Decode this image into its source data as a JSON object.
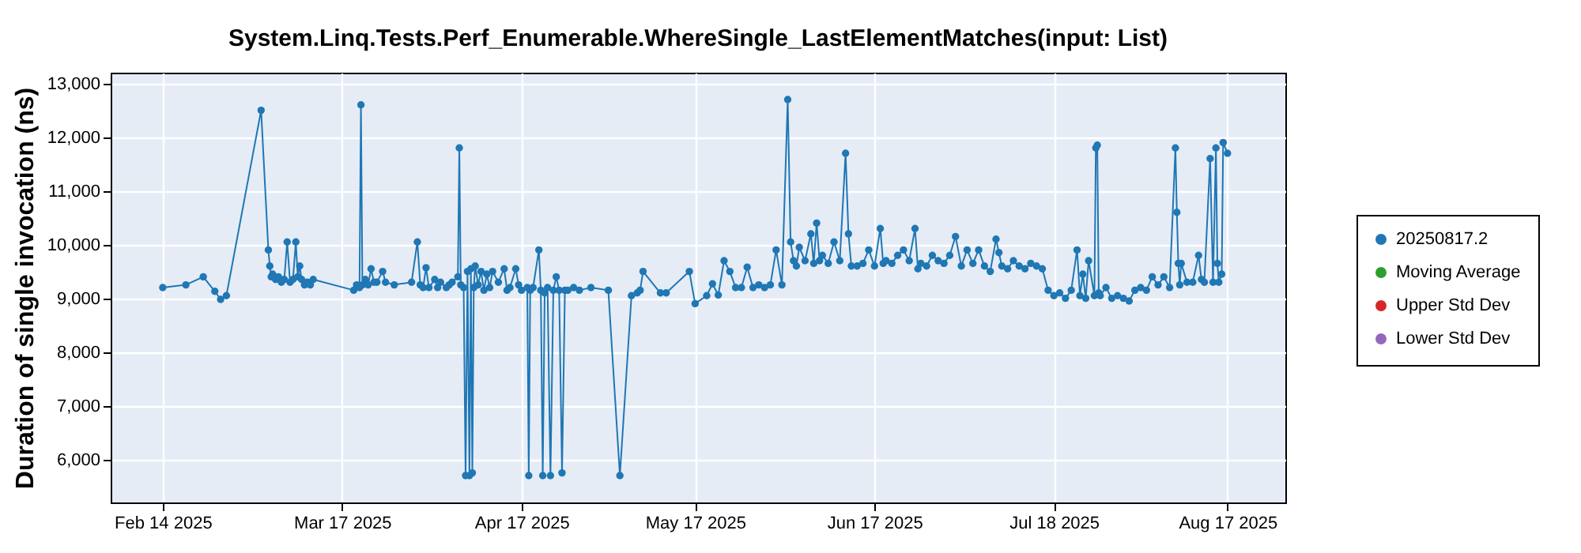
{
  "chart_data": {
    "type": "line",
    "title": "System.Linq.Tests.Perf_Enumerable.WhereSingle_LastElementMatches(input: List)",
    "ylabel": "Duration of single invocation (ns)",
    "xlim": [
      "2025-02-05",
      "2025-08-27"
    ],
    "xticks": [
      {
        "value": "2025-02-14",
        "label": "Feb 14 2025"
      },
      {
        "value": "2025-03-17",
        "label": "Mar 17 2025"
      },
      {
        "value": "2025-04-17",
        "label": "Apr 17 2025"
      },
      {
        "value": "2025-05-17",
        "label": "May 17 2025"
      },
      {
        "value": "2025-06-17",
        "label": "Jun 17 2025"
      },
      {
        "value": "2025-07-18",
        "label": "Jul 18 2025"
      },
      {
        "value": "2025-08-17",
        "label": "Aug 17 2025"
      }
    ],
    "ylim": [
      5200,
      13200
    ],
    "yticks": [
      {
        "value": 6000,
        "label": "6,000"
      },
      {
        "value": 7000,
        "label": "7,000"
      },
      {
        "value": 8000,
        "label": "8,000"
      },
      {
        "value": 9000,
        "label": "9,000"
      },
      {
        "value": 10000,
        "label": "10,000"
      },
      {
        "value": 11000,
        "label": "11,000"
      },
      {
        "value": 12000,
        "label": "12,000"
      },
      {
        "value": 13000,
        "label": "13,000"
      }
    ],
    "grid": true,
    "legend": "right",
    "marker": "circle",
    "line_style": "solid",
    "series": [
      {
        "name": "20250817.2",
        "color": "#1f77b4",
        "x": [
          "2025-02-14",
          "2025-02-18",
          "2025-02-21",
          "2025-02-23",
          "2025-02-24",
          "2025-02-25",
          "2025-03-03",
          "2025-03-04T06:00",
          "2025-03-04T12:00",
          "2025-03-04T18:00",
          "2025-03-05",
          "2025-03-05T12:00",
          "2025-03-06",
          "2025-03-06T12:00",
          "2025-03-07",
          "2025-03-07T12:00",
          "2025-03-08",
          "2025-03-08T12:00",
          "2025-03-09",
          "2025-03-09T08:00",
          "2025-03-09T16:00",
          "2025-03-10",
          "2025-03-10T12:00",
          "2025-03-11",
          "2025-03-11T12:00",
          "2025-03-12",
          "2025-03-19",
          "2025-03-19T12:00",
          "2025-03-20",
          "2025-03-20T06:00",
          "2025-03-20T12:00",
          "2025-03-21",
          "2025-03-21T12:00",
          "2025-03-22",
          "2025-03-22T12:00",
          "2025-03-23",
          "2025-03-24",
          "2025-03-24T12:00",
          "2025-03-26",
          "2025-03-29",
          "2025-03-30",
          "2025-03-30T12:00",
          "2025-03-31",
          "2025-03-31T12:00",
          "2025-04-01",
          "2025-04-02",
          "2025-04-02T12:00",
          "2025-04-03",
          "2025-04-04",
          "2025-04-04T12:00",
          "2025-04-05",
          "2025-04-06",
          "2025-04-06T06:00",
          "2025-04-06T12:00",
          "2025-04-07",
          "2025-04-07T08:00",
          "2025-04-07T16:00",
          "2025-04-08",
          "2025-04-08T06:00",
          "2025-04-08T12:00",
          "2025-04-08T18:00",
          "2025-04-09",
          "2025-04-09T12:00",
          "2025-04-10",
          "2025-04-10T12:00",
          "2025-04-11",
          "2025-04-11T12:00",
          "2025-04-12",
          "2025-04-13",
          "2025-04-14",
          "2025-04-14T12:00",
          "2025-04-15",
          "2025-04-16",
          "2025-04-16T12:00",
          "2025-04-17",
          "2025-04-18",
          "2025-04-18T06:00",
          "2025-04-18T12:00",
          "2025-04-19",
          "2025-04-20",
          "2025-04-20T08:00",
          "2025-04-20T16:00",
          "2025-04-21",
          "2025-04-21T12:00",
          "2025-04-22",
          "2025-04-22T12:00",
          "2025-04-23",
          "2025-04-23T12:00",
          "2025-04-24",
          "2025-04-24T12:00",
          "2025-04-25",
          "2025-04-26",
          "2025-04-27",
          "2025-04-29",
          "2025-05-02",
          "2025-05-04",
          "2025-05-06",
          "2025-05-07",
          "2025-05-07T12:00",
          "2025-05-08",
          "2025-05-11",
          "2025-05-12",
          "2025-05-16",
          "2025-05-17",
          "2025-05-19",
          "2025-05-20",
          "2025-05-21",
          "2025-05-22",
          "2025-05-23",
          "2025-05-24",
          "2025-05-25",
          "2025-05-26",
          "2025-05-27",
          "2025-05-28",
          "2025-05-29",
          "2025-05-30",
          "2025-05-31",
          "2025-06-01",
          "2025-06-02",
          "2025-06-02T12:00",
          "2025-06-03",
          "2025-06-03T12:00",
          "2025-06-04",
          "2025-06-05",
          "2025-06-06",
          "2025-06-06T12:00",
          "2025-06-07",
          "2025-06-07T12:00",
          "2025-06-08",
          "2025-06-09",
          "2025-06-10",
          "2025-06-11",
          "2025-06-12",
          "2025-06-12T12:00",
          "2025-06-13",
          "2025-06-14",
          "2025-06-15",
          "2025-06-16",
          "2025-06-17",
          "2025-06-18",
          "2025-06-18T12:00",
          "2025-06-19",
          "2025-06-20",
          "2025-06-21",
          "2025-06-22",
          "2025-06-23",
          "2025-06-24",
          "2025-06-24T12:00",
          "2025-06-25",
          "2025-06-26",
          "2025-06-27",
          "2025-06-28",
          "2025-06-29",
          "2025-06-30",
          "2025-07-01",
          "2025-07-02",
          "2025-07-03",
          "2025-07-04",
          "2025-07-05",
          "2025-07-06",
          "2025-07-07",
          "2025-07-08",
          "2025-07-08T12:00",
          "2025-07-09",
          "2025-07-10",
          "2025-07-11",
          "2025-07-12",
          "2025-07-13",
          "2025-07-14",
          "2025-07-15",
          "2025-07-16",
          "2025-07-17",
          "2025-07-18",
          "2025-07-19",
          "2025-07-20",
          "2025-07-21",
          "2025-07-22",
          "2025-07-22T12:00",
          "2025-07-23",
          "2025-07-23T12:00",
          "2025-07-24",
          "2025-07-25",
          "2025-07-25T06:00",
          "2025-07-25T12:00",
          "2025-07-25T18:00",
          "2025-07-26",
          "2025-07-27",
          "2025-07-28",
          "2025-07-29",
          "2025-07-30",
          "2025-07-31",
          "2025-08-01",
          "2025-08-02",
          "2025-08-03",
          "2025-08-04",
          "2025-08-05",
          "2025-08-06",
          "2025-08-07",
          "2025-08-08",
          "2025-08-08T06:00",
          "2025-08-08T12:00",
          "2025-08-08T18:00",
          "2025-08-09",
          "2025-08-10",
          "2025-08-11",
          "2025-08-12",
          "2025-08-12T12:00",
          "2025-08-13",
          "2025-08-14",
          "2025-08-14T12:00",
          "2025-08-15",
          "2025-08-15T06:00",
          "2025-08-15T12:00",
          "2025-08-16",
          "2025-08-16T06:00",
          "2025-08-17"
        ],
        "values": [
          9200,
          9250,
          9400,
          9130,
          8980,
          9050,
          12500,
          9900,
          9600,
          9400,
          9450,
          9350,
          9400,
          9300,
          9350,
          10050,
          9300,
          9350,
          10050,
          9400,
          9600,
          9350,
          9250,
          9300,
          9250,
          9350,
          9150,
          9250,
          9200,
          12600,
          9250,
          9350,
          9250,
          9550,
          9300,
          9300,
          9500,
          9300,
          9250,
          9300,
          10050,
          9250,
          9200,
          9570,
          9200,
          9350,
          9200,
          9300,
          9200,
          9250,
          9300,
          9400,
          11800,
          9250,
          9200,
          5700,
          9500,
          5700,
          9550,
          5750,
          9200,
          9600,
          9250,
          9500,
          9150,
          9450,
          9200,
          9500,
          9300,
          9550,
          9150,
          9200,
          9550,
          9250,
          9150,
          9200,
          5700,
          9150,
          9200,
          9900,
          9150,
          5700,
          9100,
          9200,
          5700,
          9150,
          9400,
          9150,
          5750,
          9150,
          9150,
          9200,
          9150,
          9200,
          9150,
          5700,
          9050,
          9100,
          9150,
          9500,
          9100,
          9100,
          9500,
          8900,
          9050,
          9270,
          9060,
          9700,
          9500,
          9200,
          9200,
          9580,
          9200,
          9250,
          9200,
          9250,
          9900,
          9250,
          12700,
          10050,
          9700,
          9600,
          9950,
          9700,
          10200,
          9650,
          10400,
          9700,
          9800,
          9650,
          10050,
          9700,
          11700,
          10200,
          9600,
          9600,
          9650,
          9900,
          9600,
          10300,
          9650,
          9700,
          9650,
          9800,
          9900,
          9700,
          10300,
          9550,
          9650,
          9600,
          9800,
          9700,
          9650,
          9800,
          10150,
          9600,
          9900,
          9650,
          9900,
          9600,
          9500,
          10100,
          9850,
          9600,
          9550,
          9700,
          9600,
          9550,
          9650,
          9600,
          9550,
          9150,
          9050,
          9100,
          9000,
          9150,
          9900,
          9050,
          9450,
          9000,
          9700,
          9050,
          11800,
          11850,
          9100,
          9050,
          9200,
          9000,
          9050,
          9000,
          8950,
          9150,
          9200,
          9150,
          9400,
          9250,
          9400,
          9200,
          11800,
          10600,
          9650,
          9250,
          9650,
          9300,
          9300,
          9800,
          9350,
          9300,
          11600,
          9300,
          11800,
          9650,
          9300,
          9450,
          11900,
          11700
        ]
      },
      {
        "name": "Moving Average",
        "color": "#2ca02c"
      },
      {
        "name": "Upper Std Dev",
        "color": "#d62728"
      },
      {
        "name": "Lower Std Dev",
        "color": "#9467bd"
      }
    ]
  }
}
